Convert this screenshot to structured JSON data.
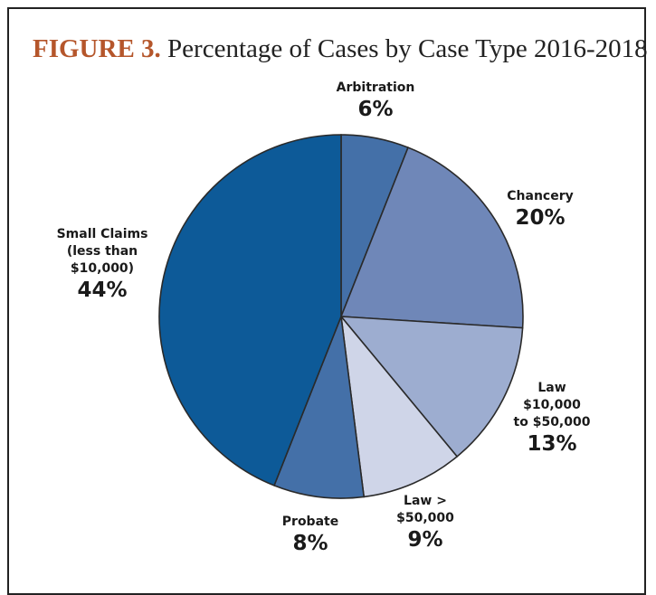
{
  "chart_data": {
    "type": "pie",
    "figure_label": "FIGURE 3.",
    "title": "Percentage of Cases by Case Type 2016-2018",
    "categories": [
      "Arbitration",
      "Chancery",
      "Law\n$10,000\nto $50,000",
      "Law >\n$50,000",
      "Probate",
      "Small Claims\n(less than\n$10,000)"
    ],
    "values": [
      6,
      20,
      13,
      9,
      8,
      44
    ],
    "value_labels": [
      "6%",
      "20%",
      "13%",
      "9%",
      "8%",
      "44%"
    ],
    "colors": [
      "#4470a8",
      "#6f87b8",
      "#9dadd0",
      "#cfd5e8",
      "#4470a8",
      "#0d5a98"
    ]
  }
}
